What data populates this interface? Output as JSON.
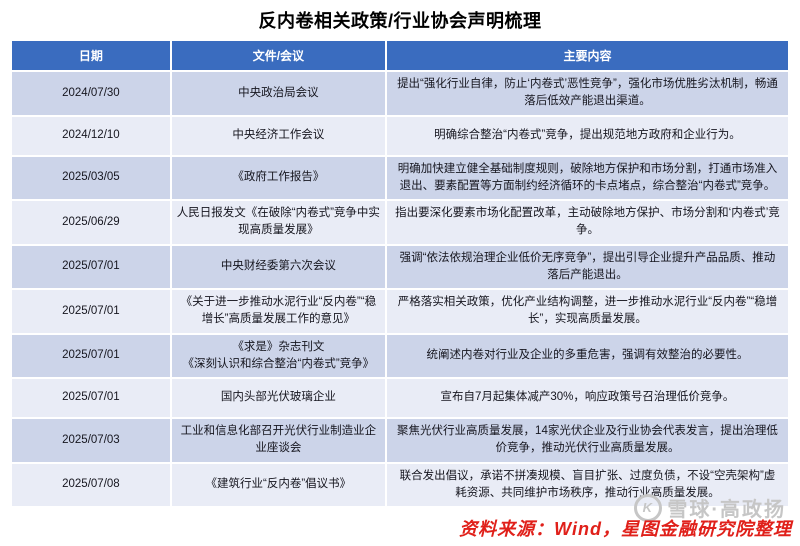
{
  "title": "反内卷相关政策/行业协会声明梳理",
  "table": {
    "headers": [
      "日期",
      "文件/会议",
      "主要内容"
    ],
    "rows": [
      {
        "date": "2024/07/30",
        "doc": "中央政治局会议",
        "content": "提出“强化行业自律，防止‘内卷式’恶性竞争”，强化市场优胜劣汰机制，畅通落后低效产能退出渠道。"
      },
      {
        "date": "2024/12/10",
        "doc": "中央经济工作会议",
        "content": "明确综合整治“内卷式”竞争，提出规范地方政府和企业行为。"
      },
      {
        "date": "2025/03/05",
        "doc": "《政府工作报告》",
        "content": "明确加快建立健全基础制度规则，破除地方保护和市场分割，打通市场准入退出、要素配置等方面制约经济循环的卡点堵点，综合整治“内卷式”竞争。"
      },
      {
        "date": "2025/06/29",
        "doc": "人民日报发文《在破除“内卷式”竞争中实现高质量发展》",
        "content": "指出要深化要素市场化配置改革，主动破除地方保护、市场分割和‘内卷式’竞争。"
      },
      {
        "date": "2025/07/01",
        "doc": "中央财经委第六次会议",
        "content": "强调“依法依规治理企业低价无序竞争”，提出引导企业提升产品品质、推动落后产能退出。"
      },
      {
        "date": "2025/07/01",
        "doc": "《关于进一步推动水泥行业“反内卷”“稳增长”高质量发展工作的意见》",
        "content": "严格落实相关政策，优化产业结构调整，进一步推动水泥行业“反内卷”“稳增长”，实现高质量发展。"
      },
      {
        "date": "2025/07/01",
        "doc": "《求是》杂志刊文\n《深刻认识和综合整治“内卷式”竞争》",
        "content": "统阐述内卷对行业及企业的多重危害，强调有效整治的必要性。"
      },
      {
        "date": "2025/07/01",
        "doc": "国内头部光伏玻璃企业",
        "content": "宣布自7月起集体减产30%，响应政策号召治理低价竞争。"
      },
      {
        "date": "2025/07/03",
        "doc": "工业和信息化部召开光伏行业制造业企业座谈会",
        "content": "聚焦光伏行业高质量发展，14家光伏企业及行业协会代表发言，提出治理低价竞争，推动光伏行业高质量发展。"
      },
      {
        "date": "2025/07/08",
        "doc": "《建筑行业“反内卷”倡议书》",
        "content": "联合发出倡议，承诺不拼凑规模、盲目扩张、过度负债，不设“空壳架构”虚耗资源、共同维护市场秩序，推动行业高质量发展。"
      }
    ]
  },
  "footer": {
    "source": "资料来源：Wind，星图金融研究院整理",
    "watermark": "雪球·高政扬",
    "watermark_logo_letter": "K"
  },
  "colors": {
    "header_bg": "#3a6cbf",
    "row_odd": "#ccd4e9",
    "row_even": "#e9ecf6",
    "source_red": "#e0201a",
    "watermark_gray": "#c6c6c6"
  },
  "chart_data": {
    "type": "table",
    "title": "反内卷相关政策/行业协会声明梳理",
    "columns": [
      "日期",
      "文件/会议",
      "主要内容"
    ],
    "rows": [
      [
        "2024/07/30",
        "中央政治局会议",
        "提出“强化行业自律，防止‘内卷式’恶性竞争”，强化市场优胜劣汰机制，畅通落后低效产能退出渠道。"
      ],
      [
        "2024/12/10",
        "中央经济工作会议",
        "明确综合整治“内卷式”竞争，提出规范地方政府和企业行为。"
      ],
      [
        "2025/03/05",
        "《政府工作报告》",
        "明确加快建立健全基础制度规则，破除地方保护和市场分割，打通市场准入退出、要素配置等方面制约经济循环的卡点堵点，综合整治“内卷式”竞争。"
      ],
      [
        "2025/06/29",
        "人民日报发文《在破除“内卷式”竞争中实现高质量发展》",
        "指出要深化要素市场化配置改革，主动破除地方保护、市场分割和‘内卷式’竞争。"
      ],
      [
        "2025/07/01",
        "中央财经委第六次会议",
        "强调“依法依规治理企业低价无序竞争”，提出引导企业提升产品品质、推动落后产能退出。"
      ],
      [
        "2025/07/01",
        "《关于进一步推动水泥行业“反内卷”“稳增长”高质量发展工作的意见》",
        "严格落实相关政策，优化产业结构调整，进一步推动水泥行业“反内卷”“稳增长”，实现高质量发展。"
      ],
      [
        "2025/07/01",
        "《求是》杂志刊文《深刻认识和综合整治“内卷式”竞争》",
        "统阐述内卷对行业及企业的多重危害，强调有效整治的必要性。"
      ],
      [
        "2025/07/01",
        "国内头部光伏玻璃企业",
        "宣布自7月起集体减产30%，响应政策号召治理低价竞争。"
      ],
      [
        "2025/07/03",
        "工业和信息化部召开光伏行业制造业企业座谈会",
        "聚焦光伏行业高质量发展，14家光伏企业及行业协会代表发言，提出治理低价竞争，推动光伏行业高质量发展。"
      ],
      [
        "2025/07/08",
        "《建筑行业“反内卷”倡议书》",
        "联合发出倡议，承诺不拼凑规模、盲目扩张、过度负债，不设“空壳架构”虚耗资源、共同维护市场秩序，推动行业高质量发展。"
      ]
    ],
    "source_note": "资料来源：Wind，星图金融研究院整理"
  }
}
